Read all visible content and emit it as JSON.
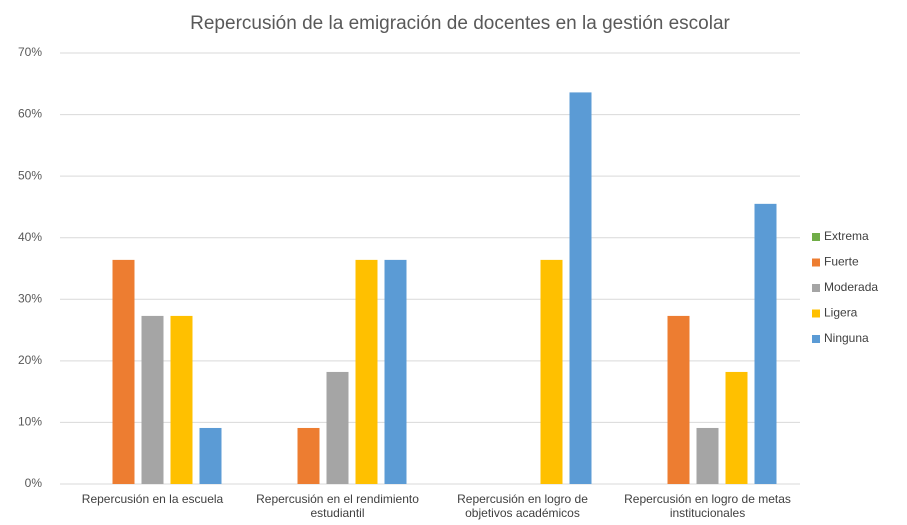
{
  "chart_data": {
    "type": "bar",
    "title": "Repercusión de la emigración de docentes en la gestión escolar",
    "categories": [
      "Repercusión en la escuela",
      "Repercusión en el rendimiento estudiantil",
      "Repercusión en logro de objetivos académicos",
      "Repercusión en logro de metas institucionales"
    ],
    "series": [
      {
        "name": "Extrema",
        "color": "#70ad47",
        "values": [
          0,
          0,
          0,
          0
        ]
      },
      {
        "name": "Fuerte",
        "color": "#ed7d31",
        "values": [
          36.4,
          9.1,
          0,
          27.3
        ]
      },
      {
        "name": "Moderada",
        "color": "#a5a5a5",
        "values": [
          27.3,
          18.2,
          0,
          9.1
        ]
      },
      {
        "name": "Ligera",
        "color": "#ffc000",
        "values": [
          27.3,
          36.4,
          36.4,
          18.2
        ]
      },
      {
        "name": "Ninguna",
        "color": "#5b9bd5",
        "values": [
          9.1,
          36.4,
          63.6,
          45.5
        ]
      }
    ],
    "ylim": [
      0,
      70
    ],
    "yticks": [
      {
        "value": 0,
        "label": "0%"
      },
      {
        "value": 10,
        "label": "10%"
      },
      {
        "value": 20,
        "label": "20%"
      },
      {
        "value": 30,
        "label": "30%"
      },
      {
        "value": 40,
        "label": "40%"
      },
      {
        "value": 50,
        "label": "50%"
      },
      {
        "value": 60,
        "label": "60%"
      },
      {
        "value": 70,
        "label": "70%"
      }
    ],
    "grid": true,
    "legend": "right"
  }
}
